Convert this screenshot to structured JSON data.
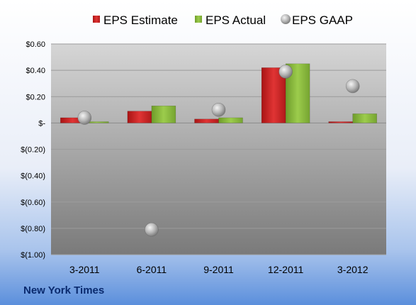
{
  "chart_data": {
    "type": "bar",
    "title": "New York Times",
    "xlabel": "",
    "ylabel": "",
    "categories": [
      "3-2011",
      "6-2011",
      "9-2011",
      "12-2011",
      "3-2012"
    ],
    "series": [
      {
        "name": "EPS Estimate",
        "kind": "bar",
        "color": "#d42a2a",
        "values": [
          0.04,
          0.09,
          0.03,
          0.42,
          0.01
        ]
      },
      {
        "name": "EPS Actual",
        "kind": "bar",
        "color": "#8bbd3e",
        "values": [
          0.01,
          0.13,
          0.04,
          0.45,
          0.07
        ]
      },
      {
        "name": "EPS GAAP",
        "kind": "marker",
        "color": "#a8a8a8",
        "values": [
          0.04,
          -0.81,
          0.1,
          0.39,
          0.28
        ]
      }
    ],
    "ylim": [
      -1.0,
      0.6
    ],
    "yticks": [
      0.6,
      0.4,
      0.2,
      0,
      -0.2,
      -0.4,
      -0.6,
      -0.8,
      -1.0
    ],
    "ytick_labels": [
      "$0.60",
      "$0.40",
      "$0.20",
      "$-",
      "$(0.20)",
      "$(0.40)",
      "$(0.60)",
      "$(0.80)",
      "$(1.00)"
    ],
    "grid": true,
    "legend_position": "top"
  }
}
